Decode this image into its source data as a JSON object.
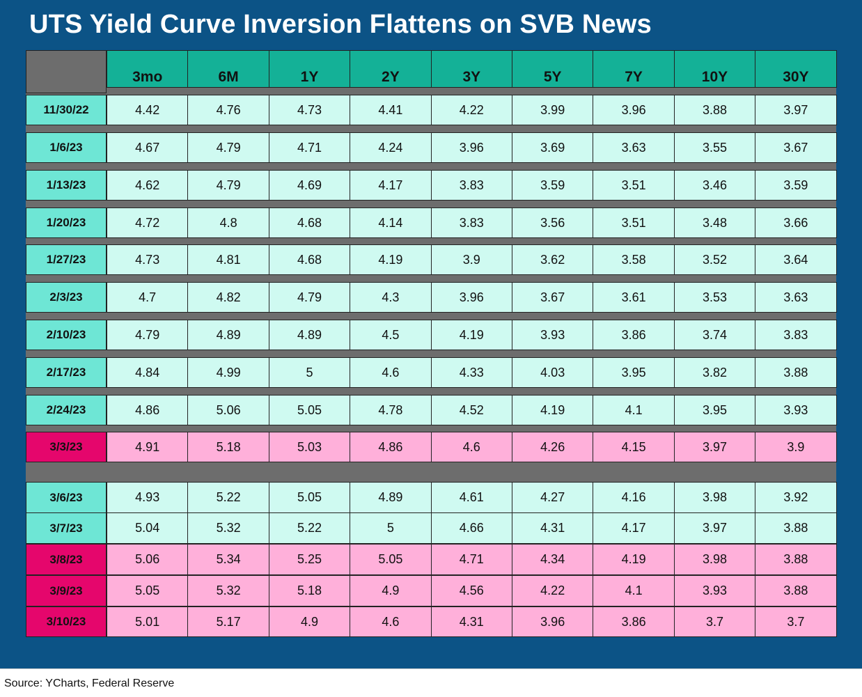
{
  "title": "UTS Yield Curve Inversion Flattens on SVB News",
  "source": "Source: YCharts, Federal Reserve",
  "colors": {
    "background": "#0c5386",
    "header": "#14b197",
    "date_teal": "#6ee6d5",
    "value_teal": "#cffaf1",
    "date_pink": "#e5066c",
    "value_pink": "#ffb0da",
    "separator": "#6d6d6d"
  },
  "chart_data": {
    "type": "table",
    "columns": [
      "3mo",
      "6M",
      "1Y",
      "2Y",
      "3Y",
      "5Y",
      "7Y",
      "10Y",
      "30Y"
    ],
    "rows": [
      {
        "date": "11/30/22",
        "highlight": false,
        "values": [
          "4.42",
          "4.76",
          "4.73",
          "4.41",
          "4.22",
          "3.99",
          "3.96",
          "3.88",
          "3.97"
        ]
      },
      {
        "date": "1/6/23",
        "highlight": false,
        "values": [
          "4.67",
          "4.79",
          "4.71",
          "4.24",
          "3.96",
          "3.69",
          "3.63",
          "3.55",
          "3.67"
        ]
      },
      {
        "date": "1/13/23",
        "highlight": false,
        "values": [
          "4.62",
          "4.79",
          "4.69",
          "4.17",
          "3.83",
          "3.59",
          "3.51",
          "3.46",
          "3.59"
        ]
      },
      {
        "date": "1/20/23",
        "highlight": false,
        "values": [
          "4.72",
          "4.8",
          "4.68",
          "4.14",
          "3.83",
          "3.56",
          "3.51",
          "3.48",
          "3.66"
        ]
      },
      {
        "date": "1/27/23",
        "highlight": false,
        "values": [
          "4.73",
          "4.81",
          "4.68",
          "4.19",
          "3.9",
          "3.62",
          "3.58",
          "3.52",
          "3.64"
        ]
      },
      {
        "date": "2/3/23",
        "highlight": false,
        "values": [
          "4.7",
          "4.82",
          "4.79",
          "4.3",
          "3.96",
          "3.67",
          "3.61",
          "3.53",
          "3.63"
        ]
      },
      {
        "date": "2/10/23",
        "highlight": false,
        "values": [
          "4.79",
          "4.89",
          "4.89",
          "4.5",
          "4.19",
          "3.93",
          "3.86",
          "3.74",
          "3.83"
        ]
      },
      {
        "date": "2/17/23",
        "highlight": false,
        "values": [
          "4.84",
          "4.99",
          "5",
          "4.6",
          "4.33",
          "4.03",
          "3.95",
          "3.82",
          "3.88"
        ]
      },
      {
        "date": "2/24/23",
        "highlight": false,
        "values": [
          "4.86",
          "5.06",
          "5.05",
          "4.78",
          "4.52",
          "4.19",
          "4.1",
          "3.95",
          "3.93"
        ]
      },
      {
        "date": "3/3/23",
        "highlight": true,
        "values": [
          "4.91",
          "5.18",
          "5.03",
          "4.86",
          "4.6",
          "4.26",
          "4.15",
          "3.97",
          "3.9"
        ]
      },
      {
        "date": "3/6/23",
        "highlight": false,
        "values": [
          "4.93",
          "5.22",
          "5.05",
          "4.89",
          "4.61",
          "4.27",
          "4.16",
          "3.98",
          "3.92"
        ]
      },
      {
        "date": "3/7/23",
        "highlight": false,
        "values": [
          "5.04",
          "5.32",
          "5.22",
          "5",
          "4.66",
          "4.31",
          "4.17",
          "3.97",
          "3.88"
        ]
      },
      {
        "date": "3/8/23",
        "highlight": true,
        "values": [
          "5.06",
          "5.34",
          "5.25",
          "5.05",
          "4.71",
          "4.34",
          "4.19",
          "3.98",
          "3.88"
        ]
      },
      {
        "date": "3/9/23",
        "highlight": true,
        "values": [
          "5.05",
          "5.32",
          "5.18",
          "4.9",
          "4.56",
          "4.22",
          "4.1",
          "3.93",
          "3.88"
        ]
      },
      {
        "date": "3/10/23",
        "highlight": true,
        "values": [
          "5.01",
          "5.17",
          "4.9",
          "4.6",
          "4.31",
          "3.96",
          "3.86",
          "3.7",
          "3.7"
        ]
      }
    ]
  }
}
